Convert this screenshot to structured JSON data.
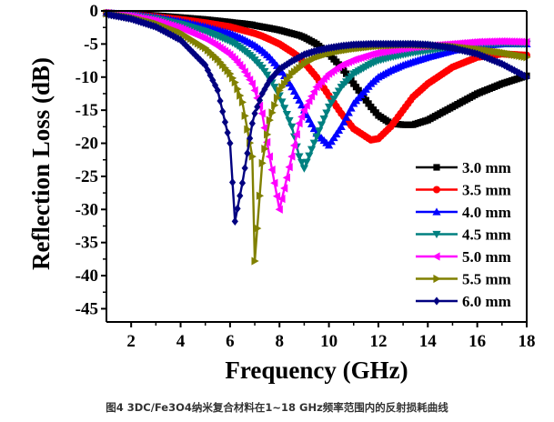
{
  "chart_data": {
    "type": "line",
    "title": "",
    "xlabel": "Frequency (GHz)",
    "ylabel": "Reflection Loss (dB)",
    "xlim": [
      1,
      18
    ],
    "ylim": [
      -47,
      0
    ],
    "xticks": [
      2,
      4,
      6,
      8,
      10,
      12,
      14,
      16,
      18
    ],
    "yticks": [
      0,
      -5,
      -10,
      -15,
      -20,
      -25,
      -30,
      -35,
      -40,
      -45
    ],
    "grid": false,
    "legend_position": "center-right",
    "x": [
      1,
      2,
      3,
      4,
      5,
      5.5,
      6,
      6.2,
      6.5,
      6.9,
      7,
      7.3,
      7.6,
      8,
      8.5,
      8.8,
      9,
      9.5,
      10,
      10.5,
      11,
      11.7,
      12,
      12.5,
      13,
      13.4,
      14,
      15,
      16,
      17,
      18
    ],
    "series": [
      {
        "name": "3.0 mm",
        "color": "#000000",
        "marker": "square",
        "values": [
          -0.3,
          -0.5,
          -0.7,
          -1.0,
          -1.3,
          -1.5,
          -1.7,
          -1.8,
          -1.9,
          -2.1,
          -2.2,
          -2.4,
          -2.6,
          -2.9,
          -3.4,
          -3.7,
          -4.0,
          -5.0,
          -6.5,
          -8.5,
          -11.0,
          -14.5,
          -15.8,
          -17.0,
          -17.2,
          -17.2,
          -16.5,
          -14.5,
          -12.5,
          -11.0,
          -9.8
        ]
      },
      {
        "name": "3.5 mm",
        "color": "#ff0000",
        "marker": "circle",
        "values": [
          -0.3,
          -0.6,
          -0.9,
          -1.3,
          -1.8,
          -2.1,
          -2.4,
          -2.6,
          -2.9,
          -3.3,
          -3.4,
          -3.8,
          -4.3,
          -5.0,
          -6.2,
          -7.0,
          -7.8,
          -10.0,
          -12.8,
          -15.5,
          -17.8,
          -19.5,
          -19.3,
          -17.5,
          -15.0,
          -13.0,
          -11.0,
          -8.5,
          -7.0,
          -6.5,
          -6.7
        ]
      },
      {
        "name": "4.0 mm",
        "color": "#0000ff",
        "marker": "triangle-up",
        "values": [
          -0.3,
          -0.6,
          -1.0,
          -1.6,
          -2.4,
          -2.9,
          -3.4,
          -3.7,
          -4.2,
          -5.0,
          -5.2,
          -6.0,
          -7.0,
          -8.7,
          -11.5,
          -13.5,
          -15.0,
          -18.5,
          -20.3,
          -17.5,
          -14.0,
          -11.0,
          -10.0,
          -9.0,
          -8.2,
          -7.7,
          -7.0,
          -6.0,
          -5.3,
          -5.0,
          -5.0
        ]
      },
      {
        "name": "4.5 mm",
        "color": "#008080",
        "marker": "triangle-down",
        "values": [
          -0.4,
          -0.7,
          -1.2,
          -2.0,
          -3.1,
          -3.8,
          -4.6,
          -5.0,
          -5.8,
          -7.0,
          -7.4,
          -8.6,
          -10.2,
          -12.8,
          -17.5,
          -22.0,
          -23.8,
          -19.0,
          -14.5,
          -11.5,
          -9.5,
          -8.0,
          -7.5,
          -7.0,
          -6.6,
          -6.3,
          -6.0,
          -5.4,
          -5.0,
          -4.9,
          -5.0
        ]
      },
      {
        "name": "5.0 mm",
        "color": "#ff00ff",
        "marker": "triangle-left",
        "values": [
          -0.4,
          -0.8,
          -1.5,
          -2.6,
          -4.2,
          -5.3,
          -6.6,
          -7.3,
          -8.6,
          -11.0,
          -12.0,
          -15.5,
          -22.0,
          -30.0,
          -22.0,
          -17.0,
          -15.0,
          -11.5,
          -9.5,
          -8.2,
          -7.4,
          -6.6,
          -6.3,
          -6.0,
          -5.7,
          -5.5,
          -5.3,
          -5.0,
          -4.7,
          -4.6,
          -4.7
        ]
      },
      {
        "name": "5.5 mm",
        "color": "#808000",
        "marker": "triangle-right",
        "values": [
          -0.4,
          -1.0,
          -1.9,
          -3.3,
          -5.6,
          -7.3,
          -9.5,
          -10.8,
          -13.8,
          -22.0,
          -37.8,
          -23.0,
          -16.5,
          -12.0,
          -9.5,
          -8.6,
          -8.0,
          -7.0,
          -6.4,
          -6.0,
          -5.7,
          -5.4,
          -5.3,
          -5.2,
          -5.1,
          -5.1,
          -5.2,
          -5.4,
          -5.8,
          -6.3,
          -7.0
        ]
      },
      {
        "name": "6.0 mm",
        "color": "#000080",
        "marker": "diamond",
        "values": [
          -0.5,
          -1.2,
          -2.4,
          -4.4,
          -8.2,
          -12.0,
          -20.0,
          -31.8,
          -26.0,
          -17.0,
          -15.5,
          -12.5,
          -10.5,
          -8.8,
          -7.6,
          -7.0,
          -6.6,
          -6.0,
          -5.6,
          -5.3,
          -5.1,
          -5.0,
          -5.0,
          -5.0,
          -5.0,
          -5.0,
          -5.1,
          -5.6,
          -6.5,
          -8.0,
          -10.0
        ]
      }
    ]
  },
  "caption": "图4 3DC/Fe3O4纳米复合材料在1~18 GHz频率范围内的反射损耗曲线"
}
